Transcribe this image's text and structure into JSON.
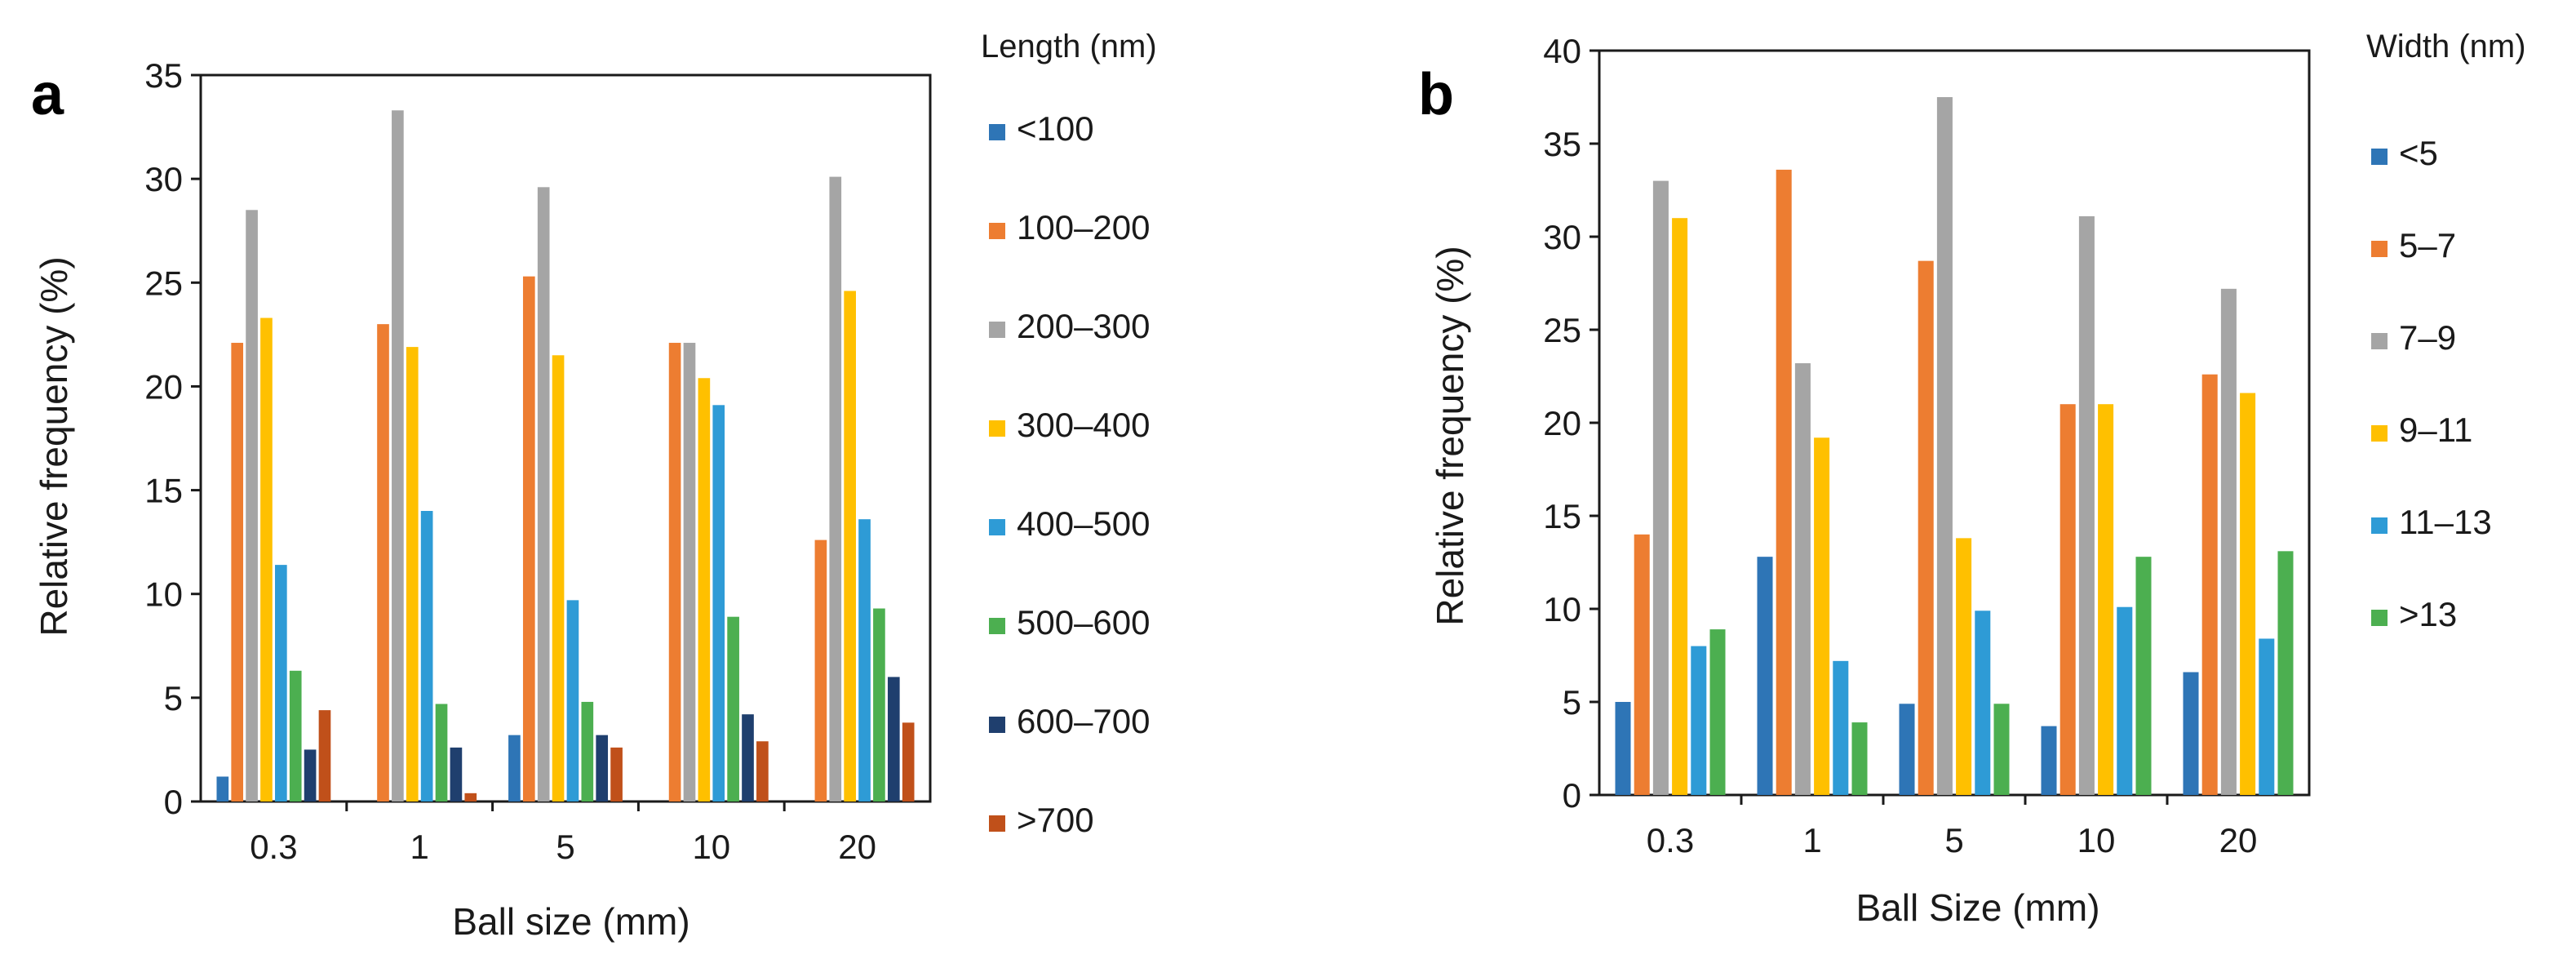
{
  "panels": [
    {
      "letter": "a",
      "chart_data": {
        "type": "bar",
        "categories": [
          "0.3",
          "1",
          "5",
          "10",
          "20"
        ],
        "xlabel": "Ball size (mm)",
        "ylabel": "Relative frequency (%)",
        "ylim": [
          0,
          35
        ],
        "yticks": [
          0,
          5,
          10,
          15,
          20,
          25,
          30,
          35
        ],
        "grid": false,
        "legend_title": "Length (nm)",
        "legend_position": "right",
        "series": [
          {
            "name": "<100",
            "color": "#2E75B6",
            "values": [
              1.2,
              0,
              3.2,
              0,
              0
            ]
          },
          {
            "name": "100–200",
            "color": "#ED7D31",
            "values": [
              22.1,
              23.0,
              25.3,
              22.1,
              12.6
            ]
          },
          {
            "name": "200–300",
            "color": "#A5A5A5",
            "values": [
              28.5,
              33.3,
              29.6,
              22.1,
              30.1
            ]
          },
          {
            "name": "300–400",
            "color": "#FFC000",
            "values": [
              23.3,
              21.9,
              21.5,
              20.4,
              24.6
            ]
          },
          {
            "name": "400–500",
            "color": "#2E9BD6",
            "values": [
              11.4,
              14.0,
              9.7,
              19.1,
              13.6
            ]
          },
          {
            "name": "500–600",
            "color": "#4CAF50",
            "values": [
              6.3,
              4.7,
              4.8,
              8.9,
              9.3
            ]
          },
          {
            "name": "600–700",
            "color": "#1F3F6E",
            "values": [
              2.5,
              2.6,
              3.2,
              4.2,
              6.0
            ]
          },
          {
            "name": ">700",
            "color": "#C0501A",
            "values": [
              4.4,
              0.4,
              2.6,
              2.9,
              3.8
            ]
          }
        ]
      }
    },
    {
      "letter": "b",
      "chart_data": {
        "type": "bar",
        "categories": [
          "0.3",
          "1",
          "5",
          "10",
          "20"
        ],
        "xlabel": "Ball Size (mm)",
        "ylabel": "Relative frequency (%)",
        "ylim": [
          0,
          40
        ],
        "yticks": [
          0,
          5,
          10,
          15,
          20,
          25,
          30,
          35,
          40
        ],
        "grid": false,
        "legend_title": "Width (nm)",
        "legend_position": "right",
        "series": [
          {
            "name": "<5",
            "color": "#2E75B6",
            "values": [
              5.0,
              12.8,
              4.9,
              3.7,
              6.6
            ]
          },
          {
            "name": "5–7",
            "color": "#ED7D31",
            "values": [
              14.0,
              33.6,
              28.7,
              21.0,
              22.6
            ]
          },
          {
            "name": "7–9",
            "color": "#A5A5A5",
            "values": [
              33.0,
              23.2,
              37.5,
              31.1,
              27.2
            ]
          },
          {
            "name": "9–11",
            "color": "#FFC000",
            "values": [
              31.0,
              19.2,
              13.8,
              21.0,
              21.6
            ]
          },
          {
            "name": "11–13",
            "color": "#2E9BD6",
            "values": [
              8.0,
              7.2,
              9.9,
              10.1,
              8.4
            ]
          },
          {
            "name": ">13",
            "color": "#4CAF50",
            "values": [
              8.9,
              3.9,
              4.9,
              12.8,
              13.1
            ]
          }
        ]
      }
    }
  ]
}
